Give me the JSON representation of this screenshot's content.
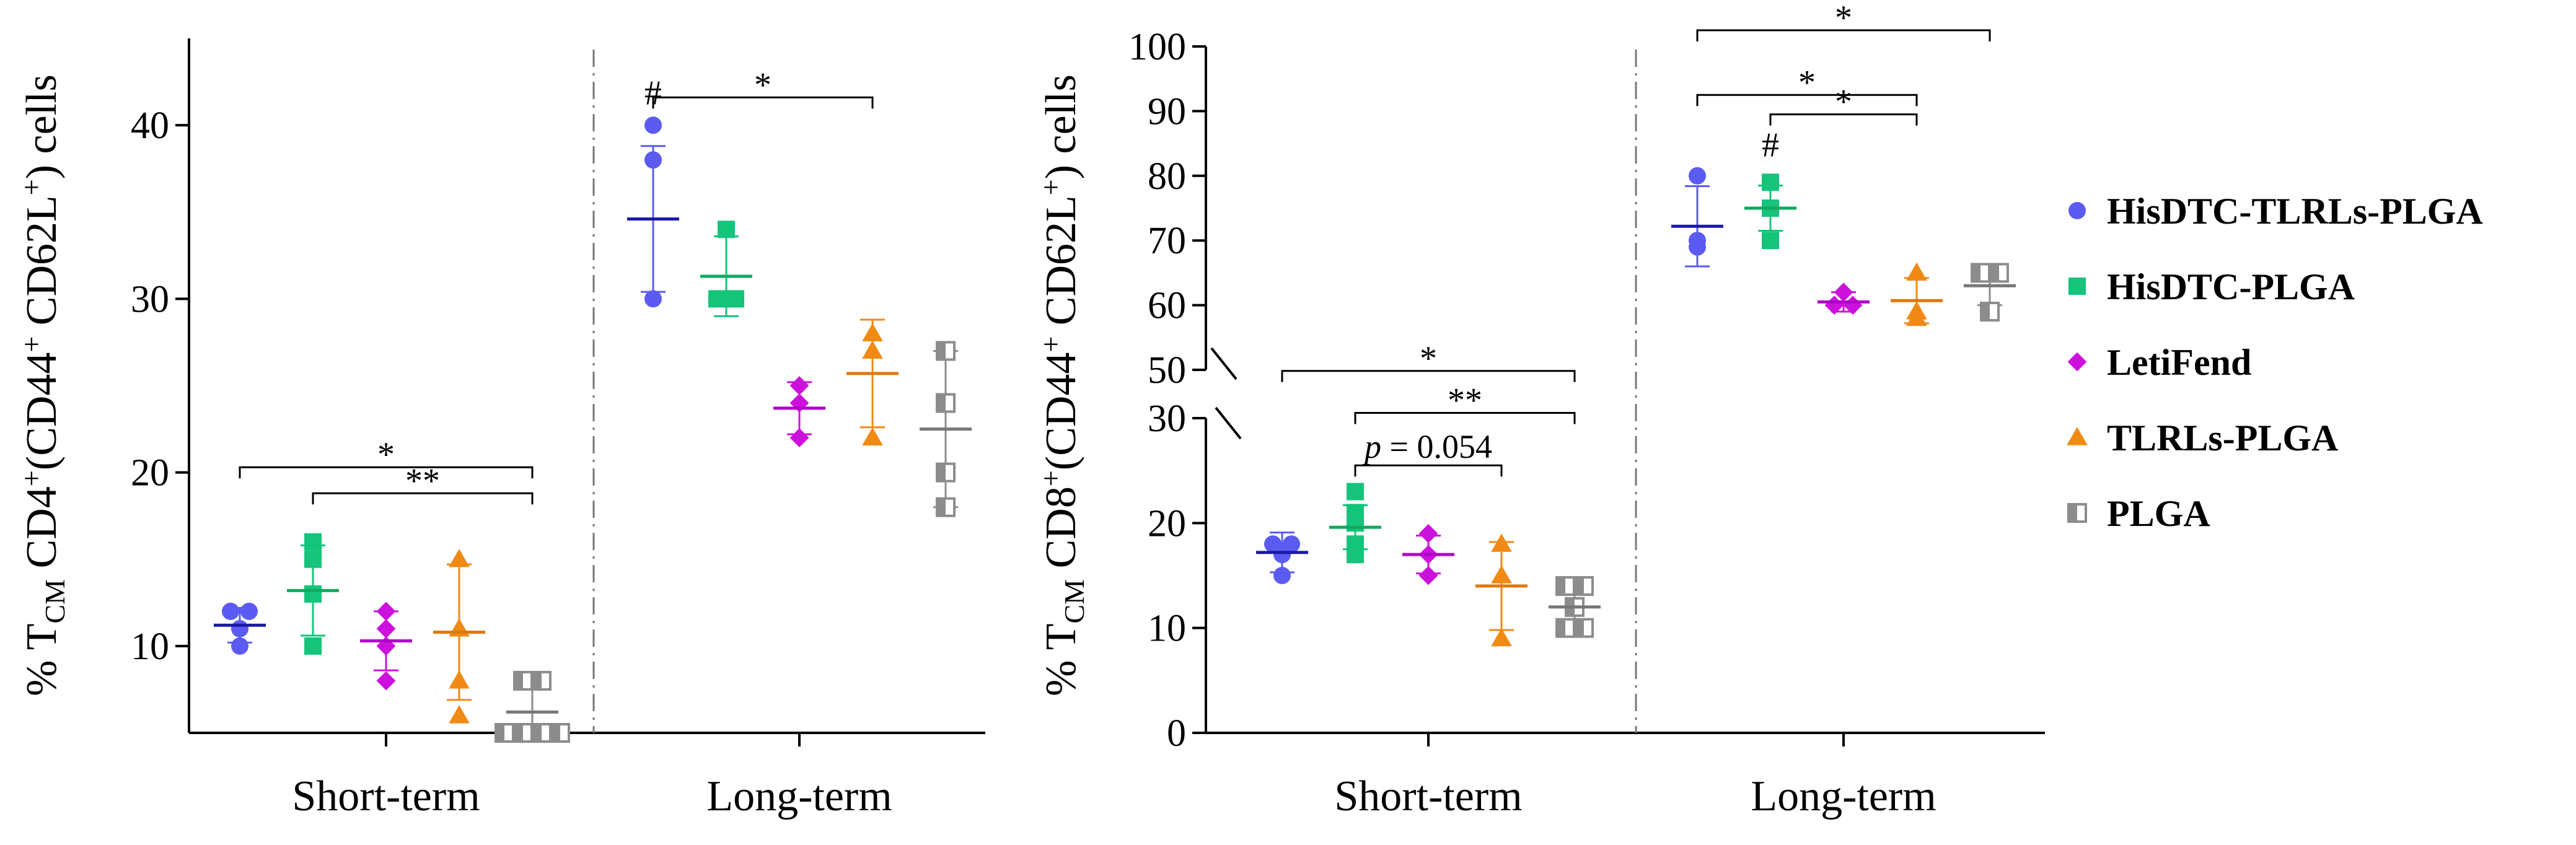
{
  "chart_data": [
    {
      "type": "scatter",
      "panel": "left",
      "ylabel": {
        "pre": "% T",
        "sub1": "CM",
        "mid1": " CD4",
        "sup1": "+",
        "mid2": "(CD44",
        "sup2": "+",
        "mid3": " CD62L",
        "sup3": "+",
        "post": ") cells"
      },
      "ylim": [
        5,
        45
      ],
      "yticks": [
        10,
        20,
        30,
        40
      ],
      "categories": [
        "Short-term",
        "Long-term"
      ],
      "groups": [
        {
          "name": "HisDTC-TLRLs-PLGA",
          "short": {
            "points": [
              12,
              12,
              11,
              10
            ],
            "mean": 11.2,
            "sd_low": 10.2,
            "sd_high": 12.2
          },
          "long": {
            "points": [
              40,
              38,
              30
            ],
            "mean": 34.6,
            "sd_low": 30.4,
            "sd_high": 38.8
          }
        },
        {
          "name": "HisDTC-PLGA",
          "short": {
            "points": [
              16,
              15,
              13,
              10
            ],
            "mean": 13.2,
            "sd_low": 10.6,
            "sd_high": 15.8
          },
          "long": {
            "points": [
              34,
              30,
              30
            ],
            "mean": 31.3,
            "sd_low": 29.0,
            "sd_high": 33.6
          }
        },
        {
          "name": "LetiFend",
          "short": {
            "points": [
              12,
              11,
              10,
              8
            ],
            "mean": 10.3,
            "sd_low": 8.6,
            "sd_high": 12.0
          },
          "long": {
            "points": [
              25,
              24,
              22
            ],
            "mean": 23.7,
            "sd_low": 22.2,
            "sd_high": 25.2
          }
        },
        {
          "name": "TLRLs-PLGA",
          "short": {
            "points": [
              15,
              11,
              8,
              6
            ],
            "mean": 10.8,
            "sd_low": 6.9,
            "sd_high": 14.7
          },
          "long": {
            "points": [
              28,
              27,
              22
            ],
            "mean": 25.7,
            "sd_low": 22.6,
            "sd_high": 28.8
          }
        },
        {
          "name": "PLGA",
          "short": {
            "points": [
              8,
              8,
              5,
              5,
              5,
              5
            ],
            "mean": 6.2,
            "sd_low": 4.6,
            "sd_high": 7.8
          },
          "long": {
            "points": [
              27,
              24,
              20,
              18
            ],
            "mean": 22.5,
            "sd_low": 18.0,
            "sd_high": 27.0
          }
        }
      ],
      "significance": [
        {
          "label": "*",
          "cat": "Short-term",
          "from": 0,
          "to": 4,
          "y": 20.3
        },
        {
          "label": "**",
          "cat": "Short-term",
          "from": 1,
          "to": 4,
          "y": 18.8
        },
        {
          "label": "*",
          "cat": "Long-term",
          "from": 0,
          "to": 3,
          "y": 41.6
        }
      ],
      "markers": [
        {
          "label": "#",
          "cat": "Long-term",
          "group": 0,
          "y": 41.2
        }
      ]
    },
    {
      "type": "scatter",
      "panel": "right",
      "broken_axis": true,
      "ylabel": {
        "pre": "% T",
        "sub1": "CM",
        "mid1": " CD8",
        "sup1": "+",
        "mid2": "(CD44",
        "sup2": "+",
        "mid3": " CD62L",
        "sup3": "+",
        "post": ") cells"
      },
      "ylim_lower": [
        0,
        30
      ],
      "ylim_upper": [
        50,
        100
      ],
      "yticks_lower": [
        0,
        10,
        20,
        30
      ],
      "yticks_upper": [
        50,
        60,
        70,
        80,
        90,
        100
      ],
      "categories": [
        "Short-term",
        "Long-term"
      ],
      "groups": [
        {
          "name": "HisDTC-TLRLs-PLGA",
          "short": {
            "points": [
              18,
              18,
              17,
              15
            ],
            "mean": 17.2,
            "sd_low": 15.3,
            "sd_high": 19.1
          },
          "long": {
            "points": [
              80,
              70,
              69
            ],
            "mean": 72.2,
            "sd_low": 66.0,
            "sd_high": 78.4
          }
        },
        {
          "name": "HisDTC-PLGA",
          "short": {
            "points": [
              23,
              21,
              20,
              18,
              17
            ],
            "mean": 19.6,
            "sd_low": 17.5,
            "sd_high": 21.7
          },
          "long": {
            "points": [
              79,
              75,
              70
            ],
            "mean": 75.0,
            "sd_low": 71.5,
            "sd_high": 78.5
          }
        },
        {
          "name": "LetiFend",
          "short": {
            "points": [
              19,
              17,
              15
            ],
            "mean": 17.0,
            "sd_low": 15.2,
            "sd_high": 18.8
          },
          "long": {
            "points": [
              62,
              60,
              60
            ],
            "mean": 60.5,
            "sd_low": 59.0,
            "sd_high": 62.0
          }
        },
        {
          "name": "TLRLs-PLGA",
          "short": {
            "points": [
              18,
              15,
              9
            ],
            "mean": 14.0,
            "sd_low": 9.8,
            "sd_high": 18.2
          },
          "long": {
            "points": [
              65,
              59,
              58
            ],
            "mean": 60.7,
            "sd_low": 57.2,
            "sd_high": 64.2
          }
        },
        {
          "name": "PLGA",
          "short": {
            "points": [
              14,
              14,
              12,
              10,
              10
            ],
            "mean": 12.0,
            "sd_low": 10.0,
            "sd_high": 14.0
          },
          "long": {
            "points": [
              65,
              65,
              59
            ],
            "mean": 63.0,
            "sd_low": 60.0,
            "sd_high": 66.0
          }
        }
      ],
      "significance": [
        {
          "label": "*",
          "cat": "Short-term",
          "from": 0,
          "to": 4,
          "y": 34.5,
          "panel": "lower"
        },
        {
          "label": "**",
          "cat": "Short-term",
          "from": 1,
          "to": 4,
          "y": 30.5,
          "panel": "lower"
        },
        {
          "label": "p = 0.054",
          "cat": "Short-term",
          "from": 1,
          "to": 3,
          "y": 25.5,
          "panel": "lower"
        },
        {
          "label": "*",
          "cat": "Long-term",
          "from": 0,
          "to": 4,
          "y": 102.5,
          "panel": "upper"
        },
        {
          "label": "*",
          "cat": "Long-term",
          "from": 0,
          "to": 3,
          "y": 92.5,
          "panel": "upper"
        },
        {
          "label": "*",
          "cat": "Long-term",
          "from": 1,
          "to": 3,
          "y": 89.5,
          "panel": "upper"
        }
      ],
      "markers": [
        {
          "label": "#",
          "cat": "Long-term",
          "group": 1,
          "y": 83
        }
      ]
    }
  ],
  "legend": [
    {
      "label": "HisDTC-TLRLs-PLGA",
      "marker": "circle",
      "color": "#5b5bf2"
    },
    {
      "label": "HisDTC-PLGA",
      "marker": "square",
      "color": "#14c47a"
    },
    {
      "label": "LetiFend",
      "marker": "diamond",
      "color": "#cc11dd"
    },
    {
      "label": "TLRLs-PLGA",
      "marker": "triangle",
      "color": "#f08a14"
    },
    {
      "label": "PLGA",
      "marker": "halfsquare",
      "color": "#8c8c8c"
    }
  ],
  "mean_line_colors": [
    "#1a1aa6",
    "#0fa85f",
    "#b000c8",
    "#e07810",
    "#777777"
  ]
}
